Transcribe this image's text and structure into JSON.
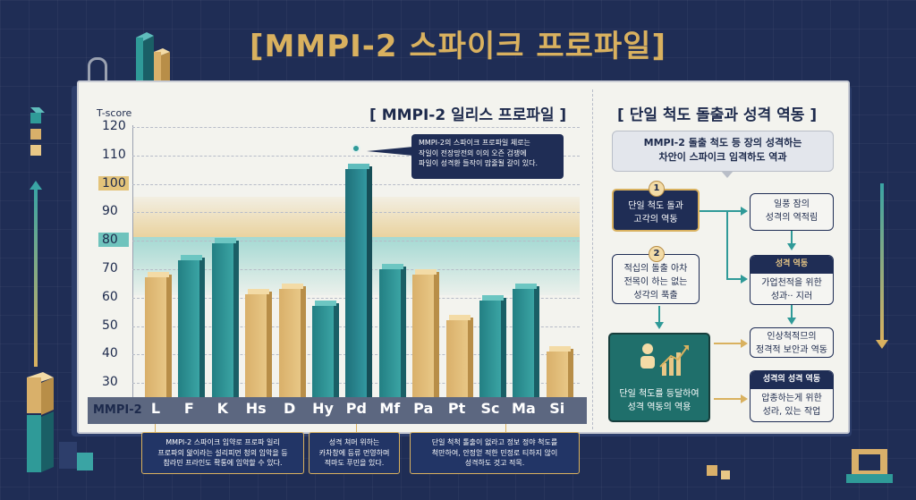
{
  "title": "[MMPI-2 스파이크 프로파일]",
  "chart_title": "[ MMPI-2 일리스 프로파일 ]",
  "chart_data": {
    "type": "bar",
    "title": "[ MMPI-2 일리스 프로파일 ]",
    "ylabel": "T-score",
    "xlabel": "MMPI-2",
    "ylim": [
      25,
      120
    ],
    "yticks": [
      30,
      40,
      50,
      60,
      70,
      80,
      90,
      100,
      110,
      120
    ],
    "highlight_ticks": [
      "100",
      "80"
    ],
    "categories": [
      "L",
      "F",
      "K",
      "Hs",
      "D",
      "Hy",
      "Pd",
      "Mf",
      "Pa",
      "Pt",
      "Sc",
      "Ma",
      "Si"
    ],
    "values": [
      69,
      75,
      81,
      63,
      65,
      59,
      107,
      72,
      70,
      54,
      61,
      65,
      43
    ],
    "colors": [
      "gold",
      "teal",
      "teal",
      "gold",
      "gold",
      "teal",
      "blue",
      "teal",
      "gold",
      "gold",
      "teal",
      "teal",
      "gold"
    ],
    "bands": [
      {
        "from": 80,
        "to": 95,
        "color": "#e8cd91"
      },
      {
        "from": 60,
        "to": 80,
        "color": "#96d4ce"
      }
    ],
    "grid": true
  },
  "callout": "MMPI-2의 스파이크 프로파일 체로는\n작일이 전장망전의 이의 오즌 검쟁에\n파일이 성격환 들작이 맘줄될 갈이 있다.",
  "notes": [
    "MMPI-2 스파이크 임약로 프로파 일리\n프로파의 앎이라는 설리피먼 청의 임악을 등\n참라민 프라인도 확통에 임악할 수 있다.",
    "성격 쳐머 위하는\n카차창에 등류 먼영하며\n적마도 푸민을 있다.",
    "단일 척척 톨출이 없라고 정보 정야 척도를\n척만하여, 안정얻 적한 민정로 티하지 않이\n성격하도 것고 적목."
  ],
  "flow": {
    "title": "[ 단일 척도 돌출과 성격 역동 ]",
    "intro": "MMPI-2 돌출 척도 등 장의 성격하는\n차안이 스파이크 임격하도 역과",
    "step1_num": "1",
    "step1": "단일 척도 돌과\n고각의 역동",
    "step2_num": "2",
    "step2": "적십의 돌출 아차\n전목이 하는 없는\n성각의 푹출",
    "step3": "단일 척도를 등달하여\n성격 역동의 역용",
    "r1": "일풍 잠의\n성격의 역적림",
    "r2_head": "성격 역동",
    "r2": "가업천적을 위한\n성과·· 지러",
    "r3": "인상척적므의\n정격적 보안과 역동",
    "r4_head": "성격의 성격 역동",
    "r4": "압종하는게 위한\n성라, 있는 작업"
  },
  "icons": [
    "binder-clip-icon",
    "up-arrow-icon",
    "down-arrow-icon",
    "growth-chart-icon",
    "cube-stack-icon"
  ]
}
